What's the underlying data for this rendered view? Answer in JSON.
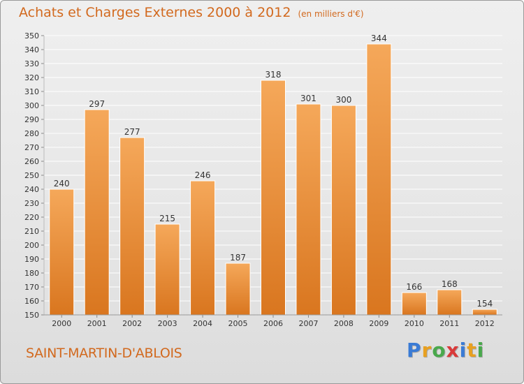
{
  "header": {
    "title": "Achats et Charges Externes 2000 à 2012",
    "unit": "(en milliers d'€)"
  },
  "commune_name": "SAINT-MARTIN-D'ABLOIS",
  "logo": {
    "letters": [
      "P",
      "r",
      "o",
      "x",
      "i",
      "t",
      "i"
    ],
    "colors": [
      "#3a7bd5",
      "#e8a020",
      "#49a84c",
      "#d93a3a",
      "#3a7bd5",
      "#e8a020",
      "#49a84c"
    ]
  },
  "colors": {
    "bar_top": "#f5a85a",
    "bar_bottom": "#d9761f",
    "title": "#d2691e"
  },
  "chart_data": {
    "type": "bar",
    "title": "Achats et Charges Externes 2000 à 2012",
    "categories": [
      "2000",
      "2001",
      "2002",
      "2003",
      "2004",
      "2005",
      "2006",
      "2007",
      "2008",
      "2009",
      "2010",
      "2011",
      "2012"
    ],
    "values": [
      240,
      297,
      277,
      215,
      246,
      187,
      318,
      301,
      300,
      344,
      166,
      168,
      154
    ],
    "ylim": [
      150,
      350
    ],
    "yticks": [
      150,
      160,
      170,
      180,
      190,
      200,
      210,
      220,
      230,
      240,
      250,
      260,
      270,
      280,
      290,
      300,
      310,
      320,
      330,
      340,
      350
    ],
    "grid": true,
    "xlabel": "",
    "ylabel": ""
  }
}
